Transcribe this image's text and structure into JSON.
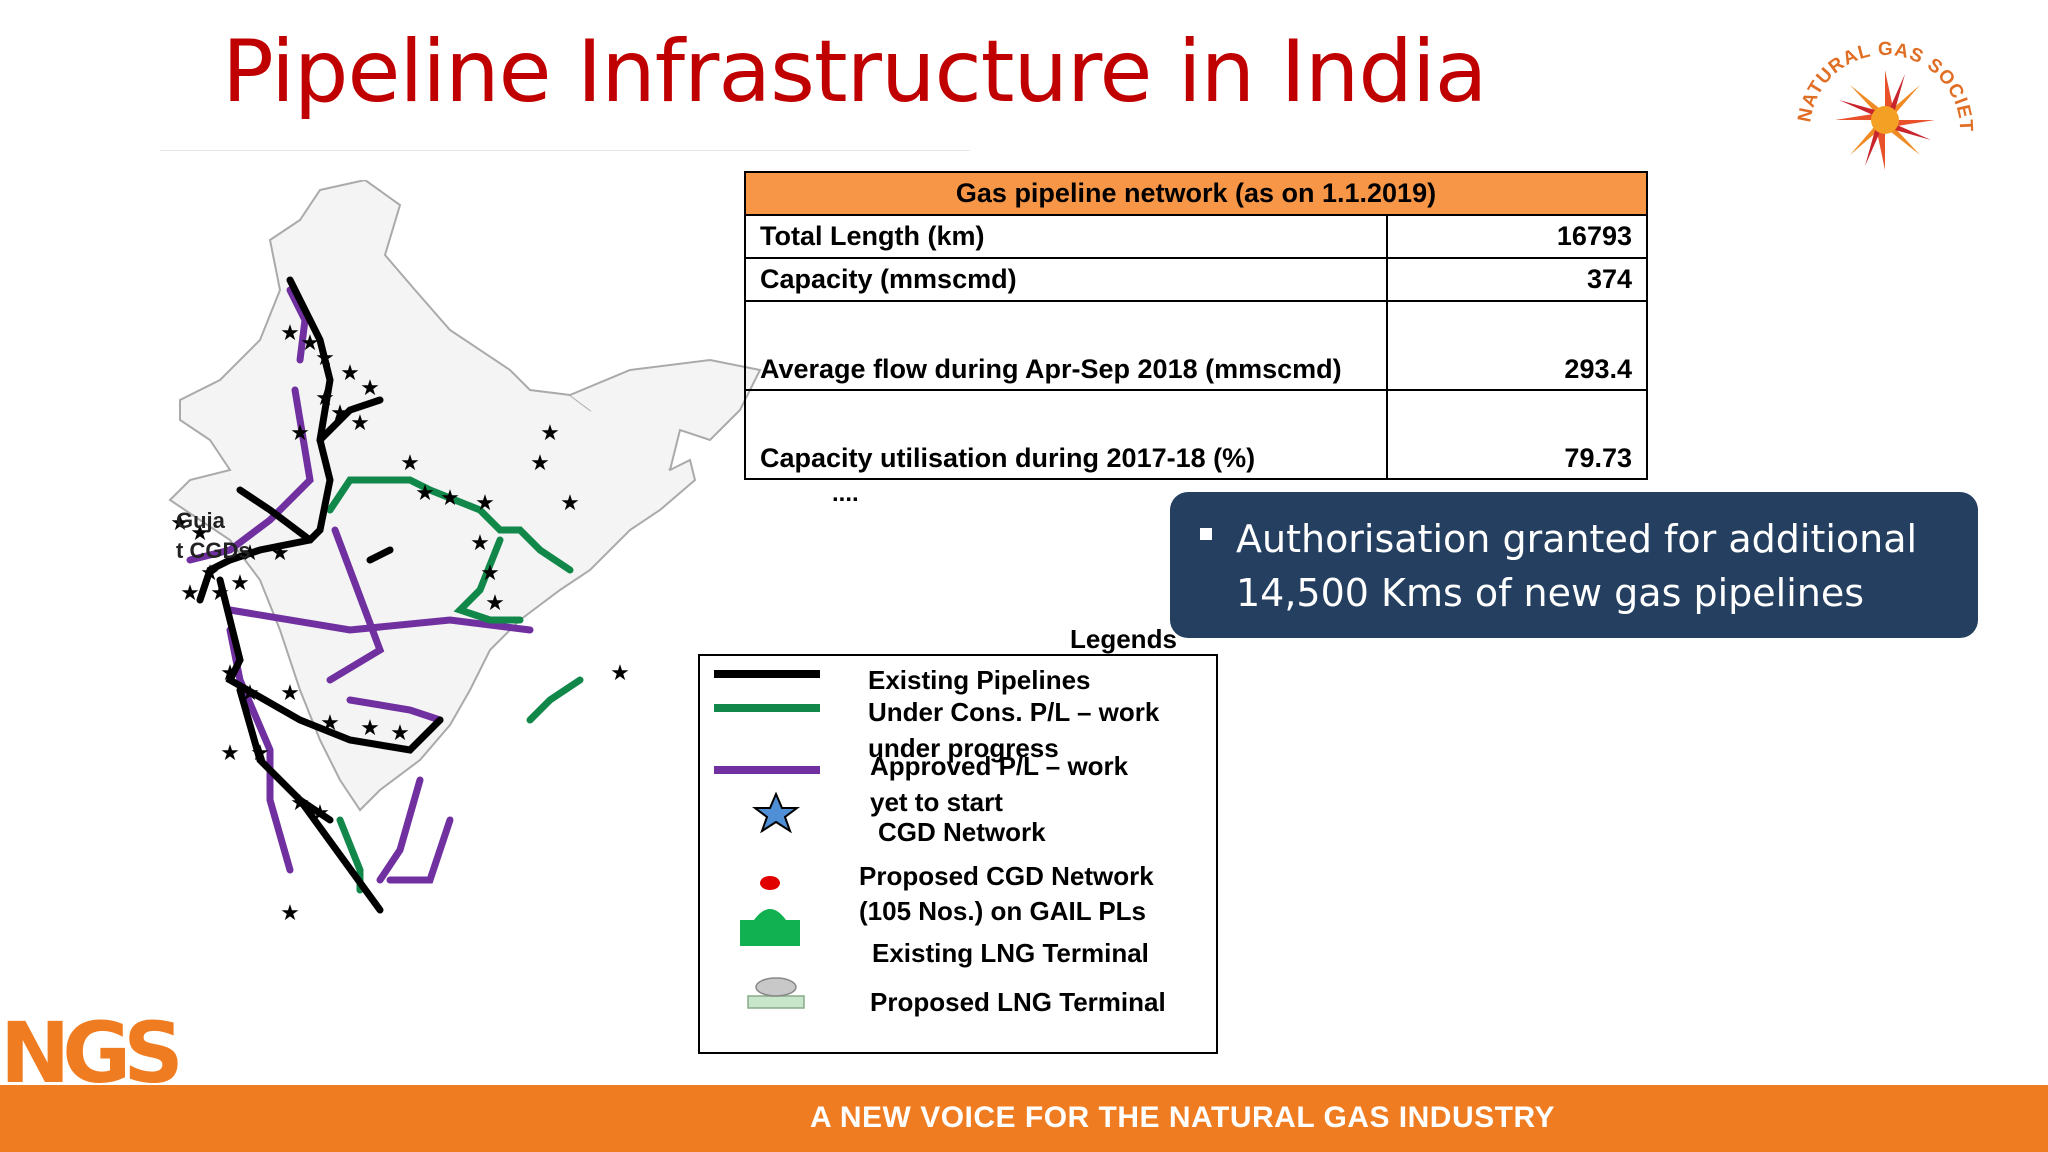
{
  "title": "Pipeline Infrastructure in India",
  "logo_text": "NATURAL GAS SOCIETY",
  "table": {
    "header": "Gas pipeline network (as on 1.1.2019)",
    "rows": [
      {
        "label": "Total Length (km)",
        "value": "16793"
      },
      {
        "label": "Capacity (mmscmd)",
        "value": "374"
      },
      {
        "label": "Average flow during Apr-Sep 2018 (mmscmd)",
        "value": "293.4"
      },
      {
        "label": "Capacity utilisation during 2017-18 (%)",
        "value": "79.73"
      }
    ]
  },
  "ellipsis": "....",
  "callout": "Authorisation granted for additional 14,500 Kms of new gas pipelines",
  "map_label": {
    "line1": "Guja",
    "line2": "t CGDs"
  },
  "legend": {
    "title": "Legends",
    "existing": "Existing Pipelines",
    "under_cons_1": "Under Cons. P/L – work",
    "under_cons_2": "under progress",
    "approved_1": "Approved P/L – work",
    "approved_2": "yet to start",
    "cgd": "CGD Network",
    "proposed_cgd_1": "Proposed CGD Network",
    "proposed_cgd_2": "(105 Nos.) on GAIL PLs",
    "existing_lng": "Existing LNG Terminal",
    "proposed_lng": "Proposed LNG Terminal"
  },
  "colors": {
    "existing": "#000000",
    "under_construction": "#11884a",
    "approved": "#7030a0",
    "accent": "#c00000",
    "footer": "#f07c21"
  },
  "footer": {
    "brand": "NGS",
    "tagline": "A NEW VOICE FOR THE NATURAL GAS INDUSTRY"
  }
}
